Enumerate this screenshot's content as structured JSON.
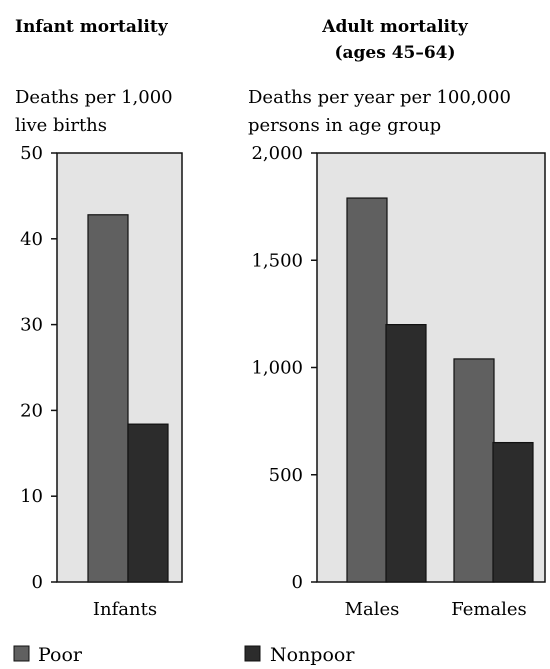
{
  "chart_data": [
    {
      "type": "bar",
      "title": "Infant mortality",
      "ylabel": "Deaths per 1,000 live births",
      "ylabel_lines": [
        "Deaths per 1,000",
        "live births"
      ],
      "categories": [
        "Infants"
      ],
      "series": [
        {
          "name": "Poor",
          "values": [
            42.8
          ]
        },
        {
          "name": "Nonpoor",
          "values": [
            18.4
          ]
        }
      ],
      "ylim": [
        0,
        50
      ],
      "yticks": [
        0,
        10,
        20,
        30,
        40,
        50
      ],
      "ytick_labels": [
        "0",
        "10",
        "20",
        "30",
        "40",
        "50"
      ]
    },
    {
      "type": "bar",
      "title": "Adult mortality (ages 45–64)",
      "title_lines": [
        "Adult mortality",
        "(ages 45–64)"
      ],
      "ylabel": "Deaths per year per 100,000 persons in age group",
      "ylabel_lines": [
        "Deaths per year per 100,000",
        "persons in age group"
      ],
      "categories": [
        "Males",
        "Females"
      ],
      "series": [
        {
          "name": "Poor",
          "values": [
            1790,
            1040
          ]
        },
        {
          "name": "Nonpoor",
          "values": [
            1200,
            650
          ]
        }
      ],
      "ylim": [
        0,
        2000
      ],
      "yticks": [
        0,
        500,
        1000,
        1500,
        2000
      ],
      "ytick_labels": [
        "0",
        "500",
        "1,000",
        "1,500",
        "2,000"
      ]
    }
  ],
  "legend": {
    "position": "bottom",
    "items": [
      {
        "label": "Poor",
        "color": "#606060"
      },
      {
        "label": "Nonpoor",
        "color": "#2c2c2c"
      }
    ]
  },
  "colors": {
    "plot_background": "#e4e4e4",
    "poor": "#606060",
    "nonpoor": "#2c2c2c"
  }
}
